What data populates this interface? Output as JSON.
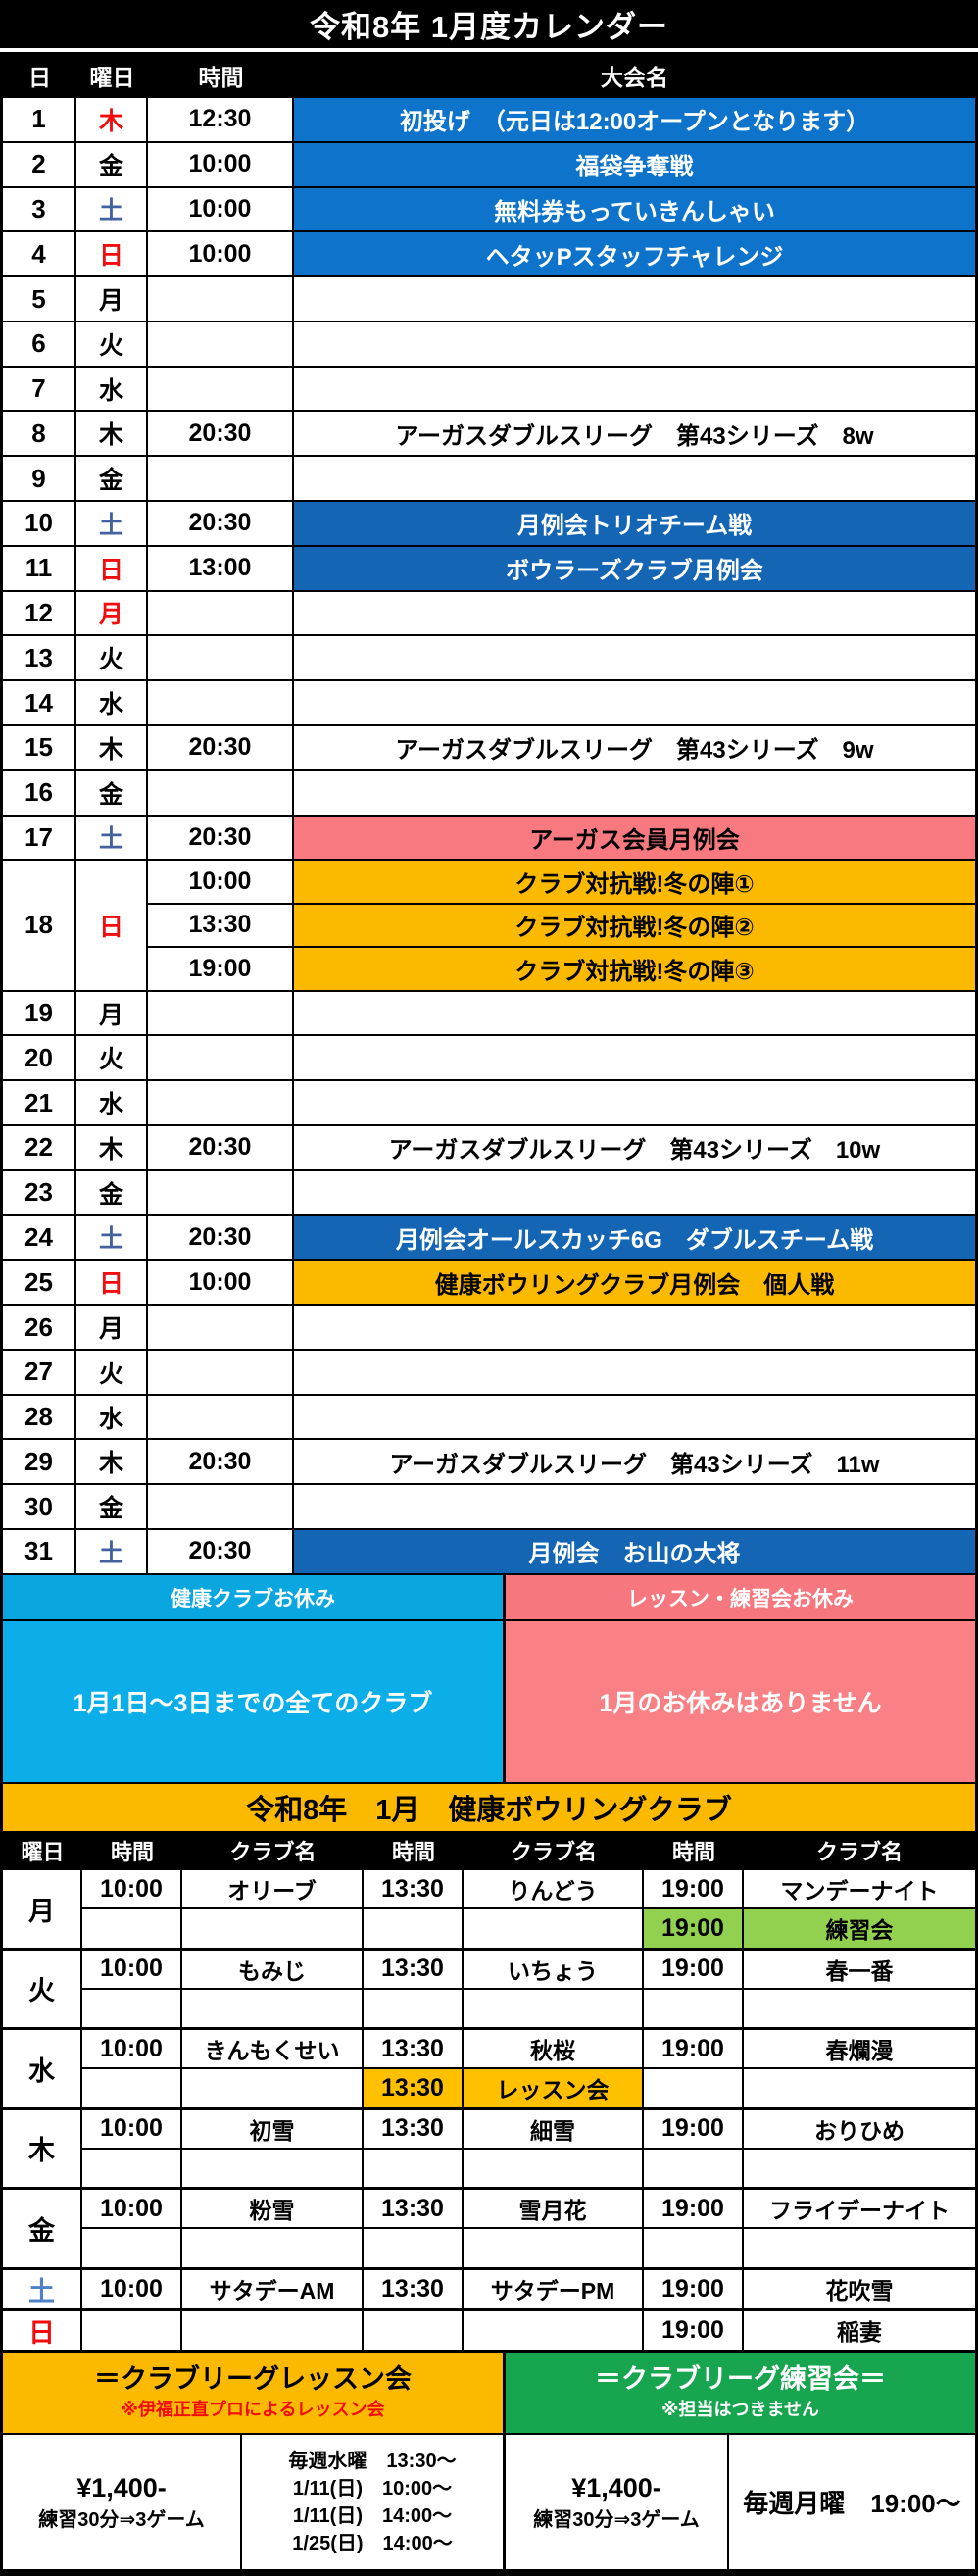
{
  "title": "令和8年 1月度カレンダー",
  "colors": {
    "event_blue": "#0D73CB",
    "event_navy": "#1465B4",
    "event_salmon": "#F8797F",
    "event_gold": "#FBBA00",
    "closed_health_cyan": "#0BAEE8",
    "closed_lessons_pink": "#F98185",
    "practice_cell_green": "#92D050",
    "lesson_cell_amber": "#FFC000",
    "practice_box_green": "#17A64F",
    "sunday_holiday_red": "#F10D0D",
    "saturday_blue": "#44639E"
  },
  "calendar": {
    "headers": [
      "日",
      "曜日",
      "時間",
      "大会名"
    ],
    "days": [
      {
        "day": "1",
        "wd": "木",
        "wdc": "red",
        "slots": [
          {
            "time": "12:30",
            "event": "初投げ　（元日は12:00オープンとなります）",
            "style": "blue"
          }
        ]
      },
      {
        "day": "2",
        "wd": "金",
        "wdc": "black",
        "slots": [
          {
            "time": "10:00",
            "event": "福袋争奪戦",
            "style": "blue"
          }
        ]
      },
      {
        "day": "3",
        "wd": "土",
        "wdc": "blue",
        "slots": [
          {
            "time": "10:00",
            "event": "無料券もっていきんしゃい",
            "style": "blue"
          }
        ]
      },
      {
        "day": "4",
        "wd": "日",
        "wdc": "red",
        "slots": [
          {
            "time": "10:00",
            "event": "ヘタッPスタッフチャレンジ",
            "style": "blue"
          }
        ]
      },
      {
        "day": "5",
        "wd": "月",
        "wdc": "black",
        "slots": [
          {}
        ]
      },
      {
        "day": "6",
        "wd": "火",
        "wdc": "black",
        "slots": [
          {}
        ]
      },
      {
        "day": "7",
        "wd": "水",
        "wdc": "black",
        "slots": [
          {}
        ]
      },
      {
        "day": "8",
        "wd": "木",
        "wdc": "black",
        "slots": [
          {
            "time": "20:30",
            "event": "アーガスダブルスリーグ　第43シリーズ　8w",
            "style": "plain"
          }
        ]
      },
      {
        "day": "9",
        "wd": "金",
        "wdc": "black",
        "slots": [
          {}
        ]
      },
      {
        "day": "10",
        "wd": "土",
        "wdc": "blue",
        "slots": [
          {
            "time": "20:30",
            "event": "月例会トリオチーム戦",
            "style": "navy"
          }
        ]
      },
      {
        "day": "11",
        "wd": "日",
        "wdc": "red",
        "slots": [
          {
            "time": "13:00",
            "event": "ボウラーズクラブ月例会",
            "style": "navy"
          }
        ]
      },
      {
        "day": "12",
        "wd": "月",
        "wdc": "red",
        "slots": [
          {}
        ]
      },
      {
        "day": "13",
        "wd": "火",
        "wdc": "black",
        "slots": [
          {}
        ]
      },
      {
        "day": "14",
        "wd": "水",
        "wdc": "black",
        "slots": [
          {}
        ]
      },
      {
        "day": "15",
        "wd": "木",
        "wdc": "black",
        "slots": [
          {
            "time": "20:30",
            "event": "アーガスダブルスリーグ　第43シリーズ　9w",
            "style": "plain"
          }
        ]
      },
      {
        "day": "16",
        "wd": "金",
        "wdc": "black",
        "slots": [
          {}
        ]
      },
      {
        "day": "17",
        "wd": "土",
        "wdc": "blue",
        "slots": [
          {
            "time": "20:30",
            "event": "アーガス会員月例会",
            "style": "salmon"
          }
        ]
      },
      {
        "day": "18",
        "wd": "日",
        "wdc": "red",
        "slots": [
          {
            "time": "10:00",
            "event": "クラブ対抗戦!冬の陣①",
            "style": "gold"
          },
          {
            "time": "13:30",
            "event": "クラブ対抗戦!冬の陣②",
            "style": "gold"
          },
          {
            "time": "19:00",
            "event": "クラブ対抗戦!冬の陣③",
            "style": "gold"
          }
        ]
      },
      {
        "day": "19",
        "wd": "月",
        "wdc": "black",
        "slots": [
          {}
        ]
      },
      {
        "day": "20",
        "wd": "火",
        "wdc": "black",
        "slots": [
          {}
        ]
      },
      {
        "day": "21",
        "wd": "水",
        "wdc": "black",
        "slots": [
          {}
        ]
      },
      {
        "day": "22",
        "wd": "木",
        "wdc": "black",
        "slots": [
          {
            "time": "20:30",
            "event": "アーガスダブルスリーグ　第43シリーズ　10w",
            "style": "plain"
          }
        ]
      },
      {
        "day": "23",
        "wd": "金",
        "wdc": "black",
        "slots": [
          {}
        ]
      },
      {
        "day": "24",
        "wd": "土",
        "wdc": "blue",
        "slots": [
          {
            "time": "20:30",
            "event": "月例会オールスカッチ6G　ダブルスチーム戦",
            "style": "navy"
          }
        ]
      },
      {
        "day": "25",
        "wd": "日",
        "wdc": "red",
        "slots": [
          {
            "time": "10:00",
            "event": "健康ボウリングクラブ月例会　個人戦",
            "style": "gold"
          }
        ]
      },
      {
        "day": "26",
        "wd": "月",
        "wdc": "black",
        "slots": [
          {}
        ]
      },
      {
        "day": "27",
        "wd": "火",
        "wdc": "black",
        "slots": [
          {}
        ]
      },
      {
        "day": "28",
        "wd": "水",
        "wdc": "black",
        "slots": [
          {}
        ]
      },
      {
        "day": "29",
        "wd": "木",
        "wdc": "black",
        "slots": [
          {
            "time": "20:30",
            "event": "アーガスダブルスリーグ　第43シリーズ　11w",
            "style": "plain"
          }
        ]
      },
      {
        "day": "30",
        "wd": "金",
        "wdc": "black",
        "slots": [
          {}
        ]
      },
      {
        "day": "31",
        "wd": "土",
        "wdc": "blue",
        "slots": [
          {
            "time": "20:30",
            "event": "月例会　お山の大将",
            "style": "navy"
          }
        ]
      }
    ]
  },
  "closed": {
    "health": {
      "header": "健康クラブお休み",
      "body": "1月1日～3日までの全てのクラブ"
    },
    "lessons": {
      "header": "レッスン・練習会お休み",
      "body": "1月のお休みはありません"
    }
  },
  "club": {
    "banner": "令和8年　1月　健康ボウリングクラブ",
    "headers": [
      "曜日",
      "時間",
      "クラブ名",
      "時間",
      "クラブ名",
      "時間",
      "クラブ名"
    ],
    "bands": [
      {
        "wd": "月",
        "wdc": "black",
        "rows": [
          [
            {
              "time": "10:00",
              "name": "オリーブ"
            },
            {
              "time": "13:30",
              "name": "りんどう"
            },
            {
              "time": "19:00",
              "name": "マンデーナイト"
            }
          ],
          [
            null,
            null,
            {
              "time": "19:00",
              "name": "練習会",
              "style": "green"
            }
          ]
        ]
      },
      {
        "wd": "火",
        "wdc": "black",
        "rows": [
          [
            {
              "time": "10:00",
              "name": "もみじ"
            },
            {
              "time": "13:30",
              "name": "いちょう"
            },
            {
              "time": "19:00",
              "name": "春一番"
            }
          ],
          [
            null,
            null,
            null
          ]
        ]
      },
      {
        "wd": "水",
        "wdc": "black",
        "rows": [
          [
            {
              "time": "10:00",
              "name": "きんもくせい"
            },
            {
              "time": "13:30",
              "name": "秋桜"
            },
            {
              "time": "19:00",
              "name": "春爛漫"
            }
          ],
          [
            null,
            {
              "time": "13:30",
              "name": "レッスン会",
              "style": "gold"
            },
            null
          ]
        ]
      },
      {
        "wd": "木",
        "wdc": "black",
        "rows": [
          [
            {
              "time": "10:00",
              "name": "初雪"
            },
            {
              "time": "13:30",
              "name": "細雪"
            },
            {
              "time": "19:00",
              "name": "おりひめ"
            }
          ],
          [
            null,
            null,
            null
          ]
        ]
      },
      {
        "wd": "金",
        "wdc": "black",
        "rows": [
          [
            {
              "time": "10:00",
              "name": "粉雪"
            },
            {
              "time": "13:30",
              "name": "雪月花"
            },
            {
              "time": "19:00",
              "name": "フライデーナイト"
            }
          ],
          [
            null,
            null,
            null
          ]
        ]
      },
      {
        "wd": "土",
        "wdc": "lightblue",
        "rows": [
          [
            {
              "time": "10:00",
              "name": "サタデーAM"
            },
            {
              "time": "13:30",
              "name": "サタデーPM"
            },
            {
              "time": "19:00",
              "name": "花吹雪"
            }
          ]
        ]
      },
      {
        "wd": "日",
        "wdc": "red",
        "rows": [
          [
            null,
            null,
            {
              "time": "19:00",
              "name": "稲妻"
            }
          ]
        ]
      }
    ]
  },
  "bottom": {
    "lesson": {
      "title": "＝クラブリーグレッスン会",
      "note": "※伊福正直プロによるレッスン会",
      "price": "¥1,400-",
      "price_sub": "練習30分⇒3ゲーム",
      "schedule": [
        "毎週水曜　13:30～",
        "1/11(日)　10:00～",
        "1/11(日)　14:00～",
        "1/25(日)　14:00～"
      ]
    },
    "practice": {
      "title": "＝クラブリーグ練習会＝",
      "note": "※担当はつきません",
      "price": "¥1,400-",
      "price_sub": "練習30分⇒3ゲーム",
      "weekly": "毎週月曜　19:00～"
    }
  }
}
